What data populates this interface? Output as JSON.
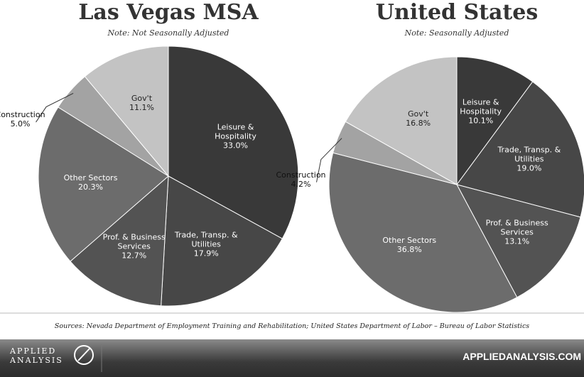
{
  "chart_data": [
    {
      "type": "pie",
      "title": "Las Vegas MSA",
      "subtitle": "Note: Not Seasonally Adjusted",
      "categories": [
        "Leisure & Hospitality",
        "Trade, Transp. & Utilities",
        "Prof. & Business Services",
        "Other Sectors",
        "Construction",
        "Gov't"
      ],
      "values": [
        33.0,
        17.9,
        12.7,
        20.3,
        5.0,
        11.1
      ],
      "value_labels": [
        "33.0%",
        "17.9%",
        "12.7%",
        "20.3%",
        "5.0%",
        "11.1%"
      ],
      "colors": [
        "#393939",
        "#474747",
        "#535353",
        "#6c6c6c",
        "#a3a3a3",
        "#c3c3c3"
      ]
    },
    {
      "type": "pie",
      "title": "United States",
      "subtitle": "Note: Seasonally Adjusted",
      "categories": [
        "Leisure & Hospitality",
        "Trade, Transp. & Utilities",
        "Prof. & Business Services",
        "Other Sectors",
        "Construction",
        "Gov't"
      ],
      "values": [
        10.1,
        19.0,
        13.1,
        36.8,
        4.2,
        16.8
      ],
      "value_labels": [
        "10.1%",
        "19.0%",
        "13.1%",
        "36.8%",
        "4.2%",
        "16.8%"
      ],
      "colors": [
        "#393939",
        "#474747",
        "#535353",
        "#6c6c6c",
        "#a3a3a3",
        "#c3c3c3"
      ]
    }
  ],
  "footer": {
    "source": "Sources: Nevada Department of Employment Training and Rehabilitation; United States Department of Labor – Bureau of Labor Statistics",
    "brand": "APPLIED ANALYSIS",
    "url": "APPLIEDANALYSIS.COM"
  }
}
